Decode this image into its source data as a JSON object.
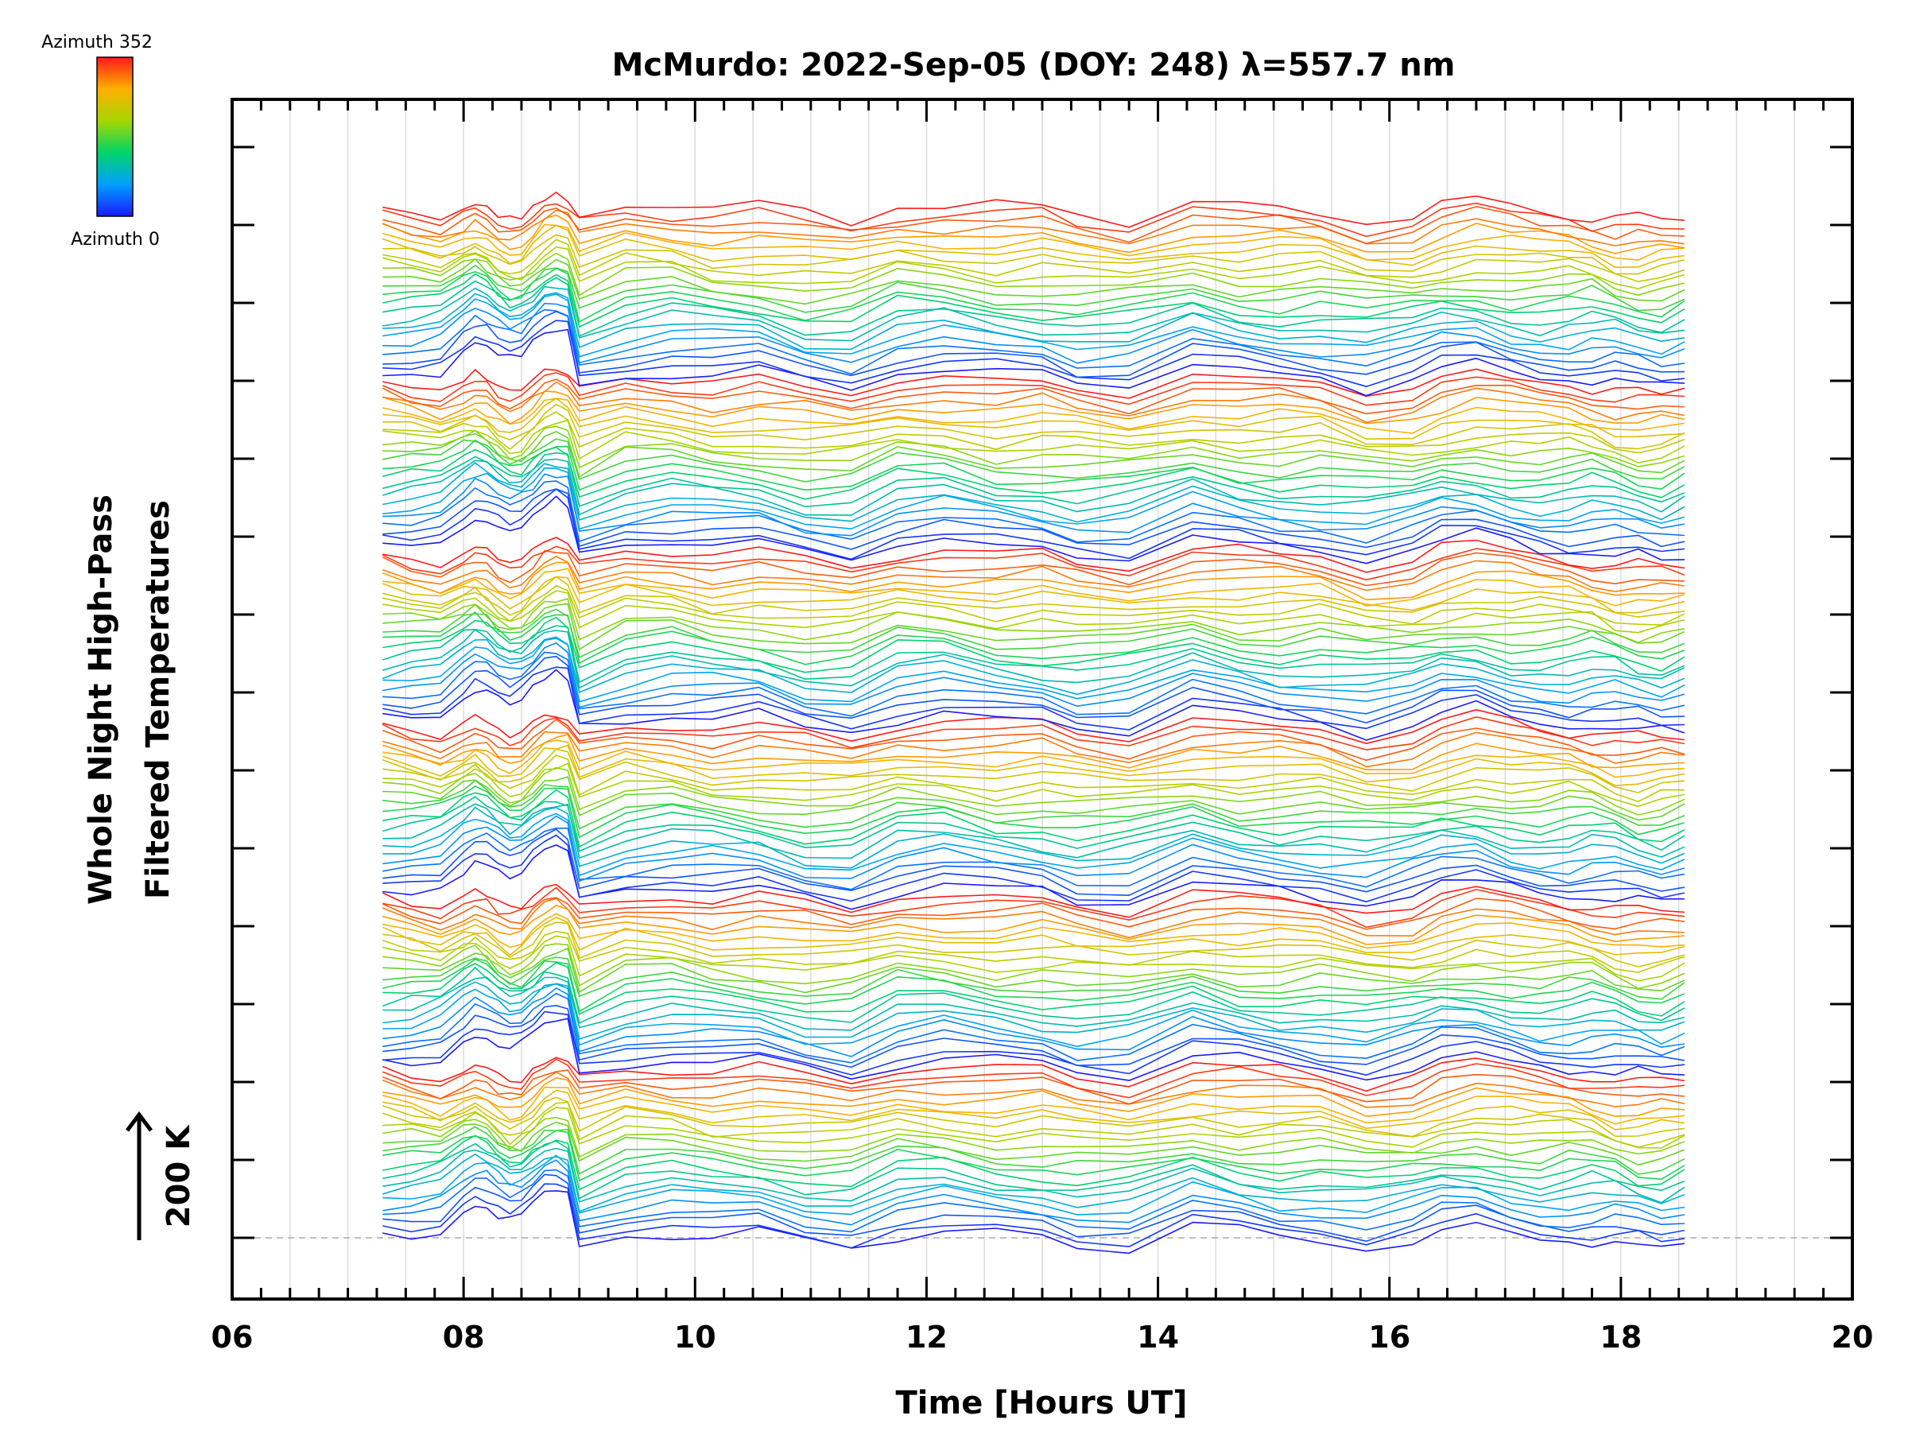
{
  "chart_data": {
    "type": "line",
    "title": "McMurdo: 2022-Sep-05 (DOY: 248) λ=557.7 nm",
    "xlabel": "Time [Hours UT]",
    "ylabel_line1": "Whole Night High-Pass",
    "ylabel_line2": "Filtered Temperatures",
    "xlim": [
      6,
      20
    ],
    "x_ticks": [
      "06",
      "08",
      "10",
      "12",
      "14",
      "16",
      "18",
      "20"
    ],
    "x_tick_values": [
      6,
      8,
      10,
      12,
      14,
      16,
      18,
      20
    ],
    "y_ticks_count": 15,
    "grid_x": true,
    "scale_bar_label": "200 K",
    "legend": {
      "top_label": "Azimuth 352",
      "bottom_label": "Azimuth 0",
      "colormap": "rainbow (blue → cyan → green → yellow → red)"
    },
    "time_samples_hours": [
      7.3,
      7.55,
      7.8,
      8.0,
      8.1,
      8.2,
      8.3,
      8.4,
      8.5,
      8.6,
      8.7,
      8.8,
      8.9,
      9.0,
      9.4,
      9.8,
      10.15,
      10.55,
      10.95,
      11.35,
      11.75,
      12.15,
      12.6,
      13.0,
      13.3,
      13.75,
      14.3,
      14.7,
      15.05,
      15.4,
      15.8,
      16.2,
      16.45,
      16.75,
      17.05,
      17.3,
      17.55,
      17.75,
      17.95,
      18.15,
      18.35,
      18.55
    ],
    "azimuth_groups": 6,
    "azimuths_per_group": 24,
    "azimuth_range_deg": [
      0,
      352
    ],
    "offset_step_fraction": 0.0386
  }
}
